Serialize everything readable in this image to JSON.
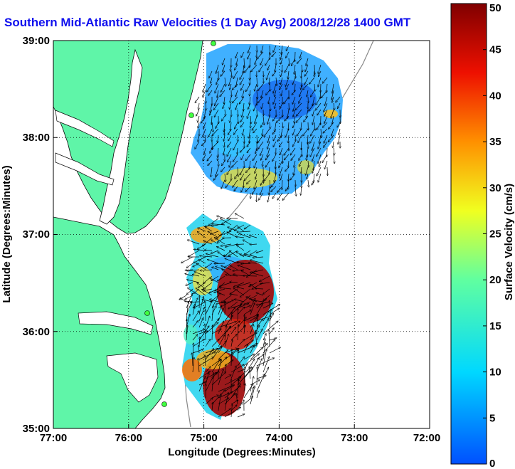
{
  "title": "Southern Mid-Atlantic Raw Velocities (1 Day Avg) 2008/12/28 1400 GMT",
  "x_axis": {
    "label": "Longitude (Degrees:Minutes)",
    "ticks": [
      "77:00",
      "76:00",
      "75:00",
      "74:00",
      "73:00",
      "72:00"
    ]
  },
  "y_axis": {
    "label": "Latitude (Degrees:Minutes)",
    "ticks": [
      "39:00",
      "38:00",
      "37:00",
      "36:00",
      "35:00"
    ]
  },
  "colorbar": {
    "label": "Surface Velocity (cm/s)",
    "ticks": [
      "50",
      "45",
      "40",
      "35",
      "30",
      "25",
      "20",
      "15",
      "10",
      "5",
      "0"
    ],
    "min": 0,
    "max": 50
  },
  "map": {
    "lon_range": [
      -77,
      -72
    ],
    "lat_range": [
      35,
      39
    ],
    "land_color": "#5ff5a8",
    "grid": "dotted",
    "field_regions": [
      {
        "name": "north-field",
        "level": 10
      },
      {
        "name": "south-field",
        "level": 14
      },
      {
        "name": "south-hotspot",
        "level": 45
      }
    ],
    "stations": 4
  }
}
